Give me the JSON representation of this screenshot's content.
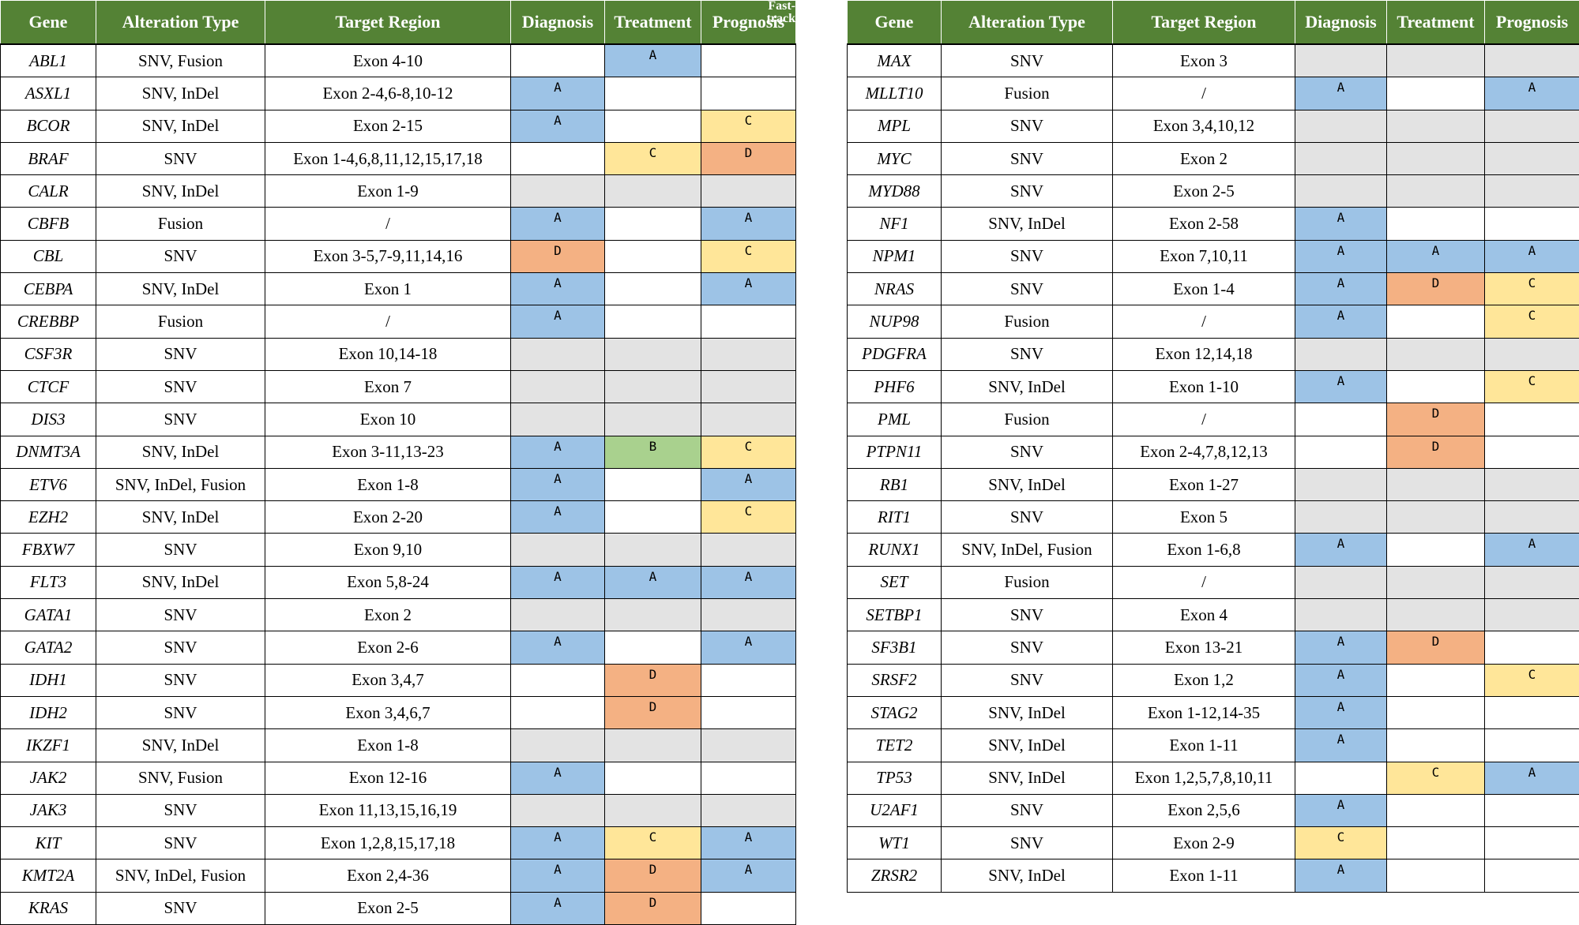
{
  "tables": [
    {
      "columns": [
        "Gene",
        "Alteration Type",
        "Target Region",
        "Diagnosis",
        "Treatment",
        "Prognosis"
      ],
      "note": "Fast-track",
      "rows": [
        {
          "gene": "ABL1",
          "alteration": "SNV, Fusion",
          "region": "Exon 4-10",
          "evidence": [
            null,
            "A",
            null
          ]
        },
        {
          "gene": "ASXL1",
          "alteration": "SNV, InDel",
          "region": "Exon 2-4,6-8,10-12",
          "evidence": [
            "A",
            null,
            null
          ]
        },
        {
          "gene": "BCOR",
          "alteration": "SNV, InDel",
          "region": "Exon 2-15",
          "evidence": [
            "A",
            null,
            "C"
          ]
        },
        {
          "gene": "BRAF",
          "alteration": "SNV",
          "region": "Exon 1-4,6,8,11,12,15,17,18",
          "evidence": [
            null,
            "C",
            "D"
          ]
        },
        {
          "gene": "CALR",
          "alteration": "SNV, InDel",
          "region": "Exon 1-9",
          "evidence": null
        },
        {
          "gene": "CBFB",
          "alteration": "Fusion",
          "region": "/",
          "evidence": [
            "A",
            null,
            "A"
          ]
        },
        {
          "gene": "CBL",
          "alteration": "SNV",
          "region": "Exon 3-5,7-9,11,14,16",
          "evidence": [
            "D",
            null,
            "C"
          ]
        },
        {
          "gene": "CEBPA",
          "alteration": "SNV, InDel",
          "region": "Exon 1",
          "evidence": [
            "A",
            null,
            "A"
          ]
        },
        {
          "gene": "CREBBP",
          "alteration": "Fusion",
          "region": "/",
          "evidence": [
            "A",
            null,
            null
          ]
        },
        {
          "gene": "CSF3R",
          "alteration": "SNV",
          "region": "Exon 10,14-18",
          "evidence": null
        },
        {
          "gene": "CTCF",
          "alteration": "SNV",
          "region": "Exon 7",
          "evidence": null
        },
        {
          "gene": "DIS3",
          "alteration": "SNV",
          "region": "Exon 10",
          "evidence": null
        },
        {
          "gene": "DNMT3A",
          "alteration": "SNV, InDel",
          "region": "Exon 3-11,13-23",
          "evidence": [
            "A",
            "B",
            "C"
          ]
        },
        {
          "gene": "ETV6",
          "alteration": "SNV, InDel, Fusion",
          "region": "Exon 1-8",
          "evidence": [
            "A",
            null,
            "A"
          ]
        },
        {
          "gene": "EZH2",
          "alteration": "SNV, InDel",
          "region": "Exon 2-20",
          "evidence": [
            "A",
            null,
            "C"
          ]
        },
        {
          "gene": "FBXW7",
          "alteration": "SNV",
          "region": "Exon 9,10",
          "evidence": null
        },
        {
          "gene": "FLT3",
          "alteration": "SNV, InDel",
          "region": "Exon 5,8-24",
          "evidence": [
            "A",
            "A",
            "A"
          ]
        },
        {
          "gene": "GATA1",
          "alteration": "SNV",
          "region": "Exon 2",
          "evidence": null
        },
        {
          "gene": "GATA2",
          "alteration": "SNV",
          "region": "Exon 2-6",
          "evidence": [
            "A",
            null,
            "A"
          ]
        },
        {
          "gene": "IDH1",
          "alteration": "SNV",
          "region": "Exon 3,4,7",
          "evidence": [
            null,
            "D",
            null
          ]
        },
        {
          "gene": "IDH2",
          "alteration": "SNV",
          "region": "Exon 3,4,6,7",
          "evidence": [
            null,
            "D",
            null
          ]
        },
        {
          "gene": "IKZF1",
          "alteration": "SNV, InDel",
          "region": "Exon 1-8",
          "evidence": null
        },
        {
          "gene": "JAK2",
          "alteration": "SNV, Fusion",
          "region": "Exon 12-16",
          "evidence": [
            "A",
            null,
            null
          ]
        },
        {
          "gene": "JAK3",
          "alteration": "SNV",
          "region": "Exon 11,13,15,16,19",
          "evidence": null
        },
        {
          "gene": "KIT",
          "alteration": "SNV",
          "region": "Exon 1,2,8,15,17,18",
          "evidence": [
            "A",
            "C",
            "A"
          ]
        },
        {
          "gene": "KMT2A",
          "alteration": "SNV, InDel, Fusion",
          "region": "Exon 2,4-36",
          "evidence": [
            "A",
            "D",
            "A"
          ]
        },
        {
          "gene": "KRAS",
          "alteration": "SNV",
          "region": "Exon 2-5",
          "evidence": [
            "A",
            "D",
            null
          ]
        }
      ]
    },
    {
      "columns": [
        "Gene",
        "Alteration Type",
        "Target Region",
        "Diagnosis",
        "Treatment",
        "Prognosis"
      ],
      "rows": [
        {
          "gene": "MAX",
          "alteration": "SNV",
          "region": "Exon 3",
          "evidence": null
        },
        {
          "gene": "MLLT10",
          "alteration": "Fusion",
          "region": "/",
          "evidence": [
            "A",
            null,
            "A"
          ]
        },
        {
          "gene": "MPL",
          "alteration": "SNV",
          "region": "Exon 3,4,10,12",
          "evidence": null
        },
        {
          "gene": "MYC",
          "alteration": "SNV",
          "region": "Exon 2",
          "evidence": null
        },
        {
          "gene": "MYD88",
          "alteration": "SNV",
          "region": "Exon 2-5",
          "evidence": null
        },
        {
          "gene": "NF1",
          "alteration": "SNV, InDel",
          "region": "Exon 2-58",
          "evidence": [
            "A",
            null,
            null
          ]
        },
        {
          "gene": "NPM1",
          "alteration": "SNV",
          "region": "Exon 7,10,11",
          "evidence": [
            "A",
            "A",
            "A"
          ]
        },
        {
          "gene": "NRAS",
          "alteration": "SNV",
          "region": "Exon 1-4",
          "evidence": [
            "A",
            "D",
            "C"
          ]
        },
        {
          "gene": "NUP98",
          "alteration": "Fusion",
          "region": "/",
          "evidence": [
            "A",
            null,
            "C"
          ]
        },
        {
          "gene": "PDGFRA",
          "alteration": "SNV",
          "region": "Exon 12,14,18",
          "evidence": null
        },
        {
          "gene": "PHF6",
          "alteration": "SNV, InDel",
          "region": "Exon 1-10",
          "evidence": [
            "A",
            null,
            "C"
          ]
        },
        {
          "gene": "PML",
          "alteration": "Fusion",
          "region": "/",
          "evidence": [
            null,
            "D",
            null
          ]
        },
        {
          "gene": "PTPN11",
          "alteration": "SNV",
          "region": "Exon 2-4,7,8,12,13",
          "evidence": [
            null,
            "D",
            null
          ]
        },
        {
          "gene": "RB1",
          "alteration": "SNV, InDel",
          "region": "Exon 1-27",
          "evidence": null
        },
        {
          "gene": "RIT1",
          "alteration": "SNV",
          "region": "Exon 5",
          "evidence": null
        },
        {
          "gene": "RUNX1",
          "alteration": "SNV, InDel, Fusion",
          "region": "Exon 1-6,8",
          "evidence": [
            "A",
            null,
            "A"
          ]
        },
        {
          "gene": "SET",
          "alteration": "Fusion",
          "region": "/",
          "evidence": null
        },
        {
          "gene": "SETBP1",
          "alteration": "SNV",
          "region": "Exon 4",
          "evidence": null
        },
        {
          "gene": "SF3B1",
          "alteration": "SNV",
          "region": "Exon 13-21",
          "evidence": [
            "A",
            "D",
            null
          ]
        },
        {
          "gene": "SRSF2",
          "alteration": "SNV",
          "region": "Exon 1,2",
          "evidence": [
            "A",
            null,
            "C"
          ]
        },
        {
          "gene": "STAG2",
          "alteration": "SNV, InDel",
          "region": "Exon 1-12,14-35",
          "evidence": [
            "A",
            null,
            null
          ]
        },
        {
          "gene": "TET2",
          "alteration": "SNV, InDel",
          "region": "Exon 1-11",
          "evidence": [
            "A",
            null,
            null
          ]
        },
        {
          "gene": "TP53",
          "alteration": "SNV, InDel",
          "region": "Exon 1,2,5,7,8,10,11",
          "evidence": [
            null,
            "C",
            "A"
          ]
        },
        {
          "gene": "U2AF1",
          "alteration": "SNV",
          "region": "Exon 2,5,6",
          "evidence": [
            "A",
            null,
            null
          ]
        },
        {
          "gene": "WT1",
          "alteration": "SNV",
          "region": "Exon 2-9",
          "evidence": [
            "C",
            null,
            null
          ]
        },
        {
          "gene": "ZRSR2",
          "alteration": "SNV, InDel",
          "region": "Exon 1-11",
          "evidence": [
            "A",
            null,
            null
          ]
        }
      ]
    }
  ],
  "level_colors": {
    "A": "#9dc3e6",
    "B": "#a9d18e",
    "C": "#ffe699",
    "D": "#f4b183"
  },
  "na_color": "#e3e3e3"
}
